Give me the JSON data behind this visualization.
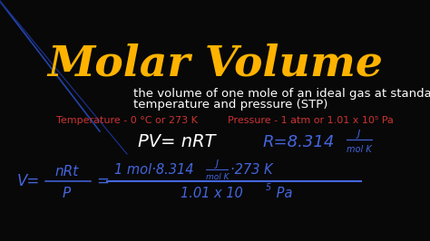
{
  "background_color": "#080808",
  "title": "Molar Volume",
  "title_color": "#FFB300",
  "title_fontsize": 34,
  "subtitle_line1": "the volume of one mole of an ideal gas at standard",
  "subtitle_line2": "temperature and pressure (STP)",
  "subtitle_color": "#ffffff",
  "subtitle_fontsize": 9.5,
  "temp_text": "Temperature - 0 °C or 273 K",
  "temp_color": "#cc3333",
  "pressure_text": "Pressure - 1 atm or 1.01 x 10⁵ Pa",
  "pressure_color": "#cc3333",
  "conditions_fontsize": 8,
  "eq_color_white": "#ffffff",
  "eq_color_blue": "#4466dd",
  "line_color": "#4466dd",
  "diag_color": "#2244aa",
  "figsize": [
    4.74,
    2.66
  ],
  "dpi": 100
}
